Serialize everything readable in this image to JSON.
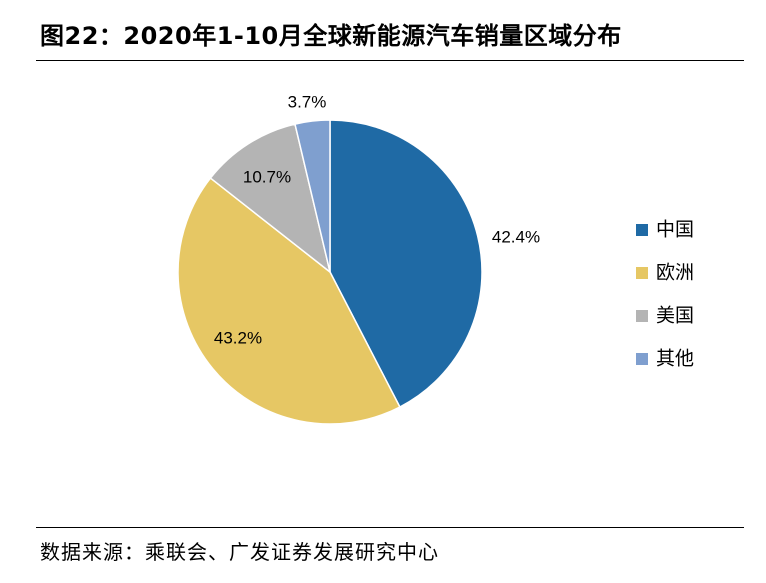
{
  "figure": {
    "title": "图22：2020年1-10月全球新能源汽车销量区域分布",
    "source": "数据来源：乘联会、广发证券发展研究中心"
  },
  "chart_data": {
    "type": "pie",
    "title": "图22：2020年1-10月全球新能源汽车销量区域分布",
    "slices": [
      {
        "name": "中国",
        "value": 42.4,
        "label": "42.4%",
        "color": "#1f6aa5"
      },
      {
        "name": "欧洲",
        "value": 43.2,
        "label": "43.2%",
        "color": "#e6c764"
      },
      {
        "name": "美国",
        "value": 10.7,
        "label": "10.7%",
        "color": "#b4b4b4"
      },
      {
        "name": "其他",
        "value": 3.7,
        "label": "3.7%",
        "color": "#7f9fcf"
      }
    ],
    "legend_position": "right",
    "start_angle_deg": 0,
    "direction": "clockwise"
  }
}
